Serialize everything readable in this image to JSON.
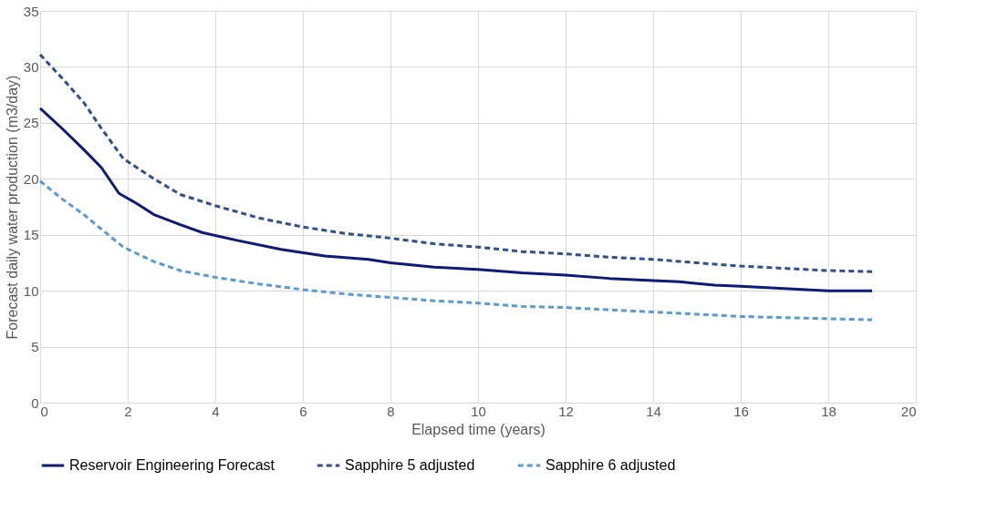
{
  "chart_data": {
    "type": "line",
    "xlabel": "Elapsed time (years)",
    "ylabel": "Forecast daily water production (m3/day)",
    "xlim": [
      0,
      20
    ],
    "xticks": [
      0,
      2,
      4,
      6,
      8,
      10,
      12,
      14,
      16,
      18,
      20
    ],
    "ylim": [
      0,
      35
    ],
    "yticks": [
      0,
      5,
      10,
      15,
      20,
      25,
      30,
      35
    ],
    "grid": true,
    "legend": "bottom",
    "series": [
      {
        "name": "Reservoir Engineering Forecast",
        "color": "#0d1a78",
        "line_style": "solid",
        "x": [
          0,
          0.5,
          1,
          1.4,
          1.8,
          2.2,
          2.6,
          3.2,
          3.7,
          4.5,
          5.5,
          6.5,
          7.5,
          8,
          9,
          10,
          11,
          12,
          13,
          14,
          14.6,
          15.4,
          16,
          17,
          18,
          19
        ],
        "values": [
          26.3,
          24.5,
          22.6,
          21,
          18.7,
          17.8,
          16.8,
          15.9,
          15.2,
          14.5,
          13.7,
          13.1,
          12.8,
          12.5,
          12.1,
          11.9,
          11.6,
          11.4,
          11.1,
          10.9,
          10.8,
          10.5,
          10.4,
          10.2,
          10.0,
          10.0
        ]
      },
      {
        "name": "Sapphire 5 adjusted",
        "color": "#2f4f8f",
        "line_style": "dashed",
        "x": [
          0,
          0.5,
          1,
          1.4,
          1.9,
          2.6,
          3.2,
          4,
          5,
          6,
          7,
          8,
          9,
          10,
          11,
          12,
          13,
          14,
          15,
          16,
          17,
          18,
          19
        ],
        "values": [
          31.1,
          29,
          26.8,
          24.5,
          21.8,
          20,
          18.6,
          17.6,
          16.5,
          15.7,
          15.1,
          14.7,
          14.2,
          13.9,
          13.5,
          13.3,
          13.0,
          12.8,
          12.5,
          12.2,
          12.0,
          11.8,
          11.7
        ]
      },
      {
        "name": "Sapphire 6 adjusted",
        "color": "#5b9bd5",
        "line_style": "dashed",
        "x": [
          0,
          0.5,
          1,
          1.4,
          1.9,
          2.6,
          3.2,
          4,
          5,
          6,
          7,
          8,
          9,
          10,
          11,
          12,
          13,
          14,
          15,
          16,
          17,
          18,
          19
        ],
        "values": [
          19.8,
          18.2,
          16.8,
          15.5,
          13.9,
          12.6,
          11.8,
          11.2,
          10.6,
          10.1,
          9.7,
          9.4,
          9.1,
          8.9,
          8.6,
          8.5,
          8.3,
          8.1,
          7.9,
          7.7,
          7.6,
          7.5,
          7.4
        ]
      }
    ]
  }
}
